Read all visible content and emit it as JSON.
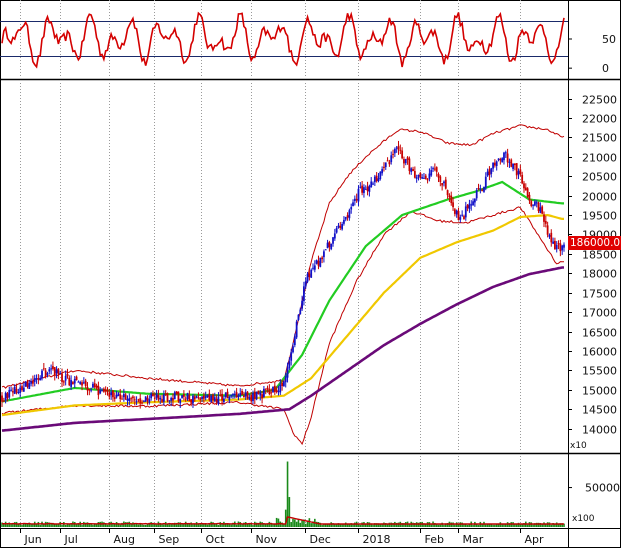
{
  "chart_data": {
    "type": "candlestick",
    "months": [
      "Jun",
      "Jul",
      "Aug",
      "Sep",
      "Oct",
      "Nov",
      "Dec",
      "2018",
      "Feb",
      "Mar",
      "Apr"
    ],
    "price_panel": {
      "yticks": [
        14000,
        14500,
        15000,
        15500,
        16000,
        16500,
        17000,
        17500,
        18000,
        18500,
        19000,
        19500,
        20000,
        20500,
        21000,
        21500,
        22000,
        22500
      ],
      "ylim": [
        13400,
        22900
      ],
      "scale_note": "x10",
      "last_price_label": "186000.0",
      "last_price": 18600,
      "anchors": {
        "close": [
          [
            0,
            14800
          ],
          [
            10,
            15050
          ],
          [
            18,
            15200
          ],
          [
            26,
            15550
          ],
          [
            34,
            15300
          ],
          [
            42,
            15150
          ],
          [
            50,
            15050
          ],
          [
            60,
            14850
          ],
          [
            70,
            14750
          ],
          [
            80,
            14780
          ],
          [
            90,
            14820
          ],
          [
            100,
            14800
          ],
          [
            110,
            14780
          ],
          [
            120,
            14820
          ],
          [
            130,
            14780
          ],
          [
            140,
            14850
          ],
          [
            150,
            15000
          ],
          [
            155,
            15250
          ],
          [
            158,
            15800
          ],
          [
            162,
            16700
          ],
          [
            167,
            17850
          ],
          [
            172,
            18150
          ],
          [
            180,
            18750
          ],
          [
            188,
            19350
          ],
          [
            196,
            20100
          ],
          [
            204,
            20300
          ],
          [
            210,
            20700
          ],
          [
            217,
            21200
          ],
          [
            223,
            20800
          ],
          [
            230,
            20400
          ],
          [
            238,
            20700
          ],
          [
            245,
            20050
          ],
          [
            252,
            19350
          ],
          [
            258,
            19850
          ],
          [
            264,
            20250
          ],
          [
            270,
            20800
          ],
          [
            277,
            21050
          ],
          [
            283,
            20650
          ],
          [
            290,
            19900
          ],
          [
            296,
            19650
          ],
          [
            303,
            18700
          ],
          [
            308,
            18650
          ]
        ],
        "ma_fast": [
          [
            0,
            14700
          ],
          [
            40,
            15050
          ],
          [
            80,
            14900
          ],
          [
            130,
            14850
          ],
          [
            150,
            15000
          ],
          [
            165,
            15900
          ],
          [
            180,
            17300
          ],
          [
            200,
            18700
          ],
          [
            220,
            19500
          ],
          [
            245,
            19900
          ],
          [
            260,
            20100
          ],
          [
            275,
            20350
          ],
          [
            290,
            19900
          ],
          [
            308,
            19800
          ]
        ],
        "ma_mid": [
          [
            0,
            14350
          ],
          [
            40,
            14600
          ],
          [
            80,
            14680
          ],
          [
            130,
            14750
          ],
          [
            155,
            14850
          ],
          [
            170,
            15300
          ],
          [
            190,
            16400
          ],
          [
            210,
            17500
          ],
          [
            230,
            18400
          ],
          [
            250,
            18800
          ],
          [
            270,
            19100
          ],
          [
            285,
            19450
          ],
          [
            300,
            19500
          ],
          [
            308,
            19400
          ]
        ],
        "ma_slow": [
          [
            0,
            13950
          ],
          [
            40,
            14150
          ],
          [
            80,
            14250
          ],
          [
            130,
            14380
          ],
          [
            158,
            14500
          ],
          [
            170,
            14850
          ],
          [
            190,
            15500
          ],
          [
            210,
            16150
          ],
          [
            230,
            16700
          ],
          [
            250,
            17200
          ],
          [
            270,
            17650
          ],
          [
            290,
            17980
          ],
          [
            308,
            18150
          ]
        ],
        "bb_upper": [
          [
            0,
            15050
          ],
          [
            40,
            15500
          ],
          [
            80,
            15300
          ],
          [
            130,
            15100
          ],
          [
            155,
            15250
          ],
          [
            160,
            16200
          ],
          [
            170,
            18300
          ],
          [
            180,
            19800
          ],
          [
            190,
            20500
          ],
          [
            200,
            21000
          ],
          [
            210,
            21400
          ],
          [
            218,
            21700
          ],
          [
            230,
            21650
          ],
          [
            245,
            21350
          ],
          [
            258,
            21300
          ],
          [
            270,
            21600
          ],
          [
            285,
            21800
          ],
          [
            300,
            21700
          ],
          [
            308,
            21500
          ]
        ],
        "bb_lower": [
          [
            0,
            14400
          ],
          [
            40,
            14600
          ],
          [
            80,
            14580
          ],
          [
            130,
            14680
          ],
          [
            155,
            14500
          ],
          [
            160,
            13900
          ],
          [
            165,
            13600
          ],
          [
            170,
            14300
          ],
          [
            180,
            16200
          ],
          [
            195,
            17800
          ],
          [
            210,
            19000
          ],
          [
            225,
            19600
          ],
          [
            240,
            19350
          ],
          [
            255,
            19300
          ],
          [
            270,
            19500
          ],
          [
            285,
            19700
          ],
          [
            296,
            18900
          ],
          [
            305,
            18250
          ],
          [
            308,
            18300
          ]
        ]
      }
    },
    "oscillator_panel": {
      "yticks": [
        0,
        50
      ],
      "ylim": [
        -10,
        110
      ],
      "upper_line": 80,
      "lower_line": 20,
      "color": "#d40000"
    },
    "volume_panel": {
      "yticks": [
        50000
      ],
      "ylim": [
        0,
        90000
      ],
      "scale_note": "x100",
      "spike_index": 157,
      "spike_value": 83000
    },
    "colors": {
      "up": "#1010c8",
      "down": "#c80000",
      "ma_fast": "#22cc22",
      "ma_mid": "#f0c800",
      "ma_slow": "#6a0a78",
      "bollinger": "#c00000",
      "volume": "#1a8a1a",
      "volume_ma": "#c00000",
      "grid": "#9a9a9a"
    }
  }
}
